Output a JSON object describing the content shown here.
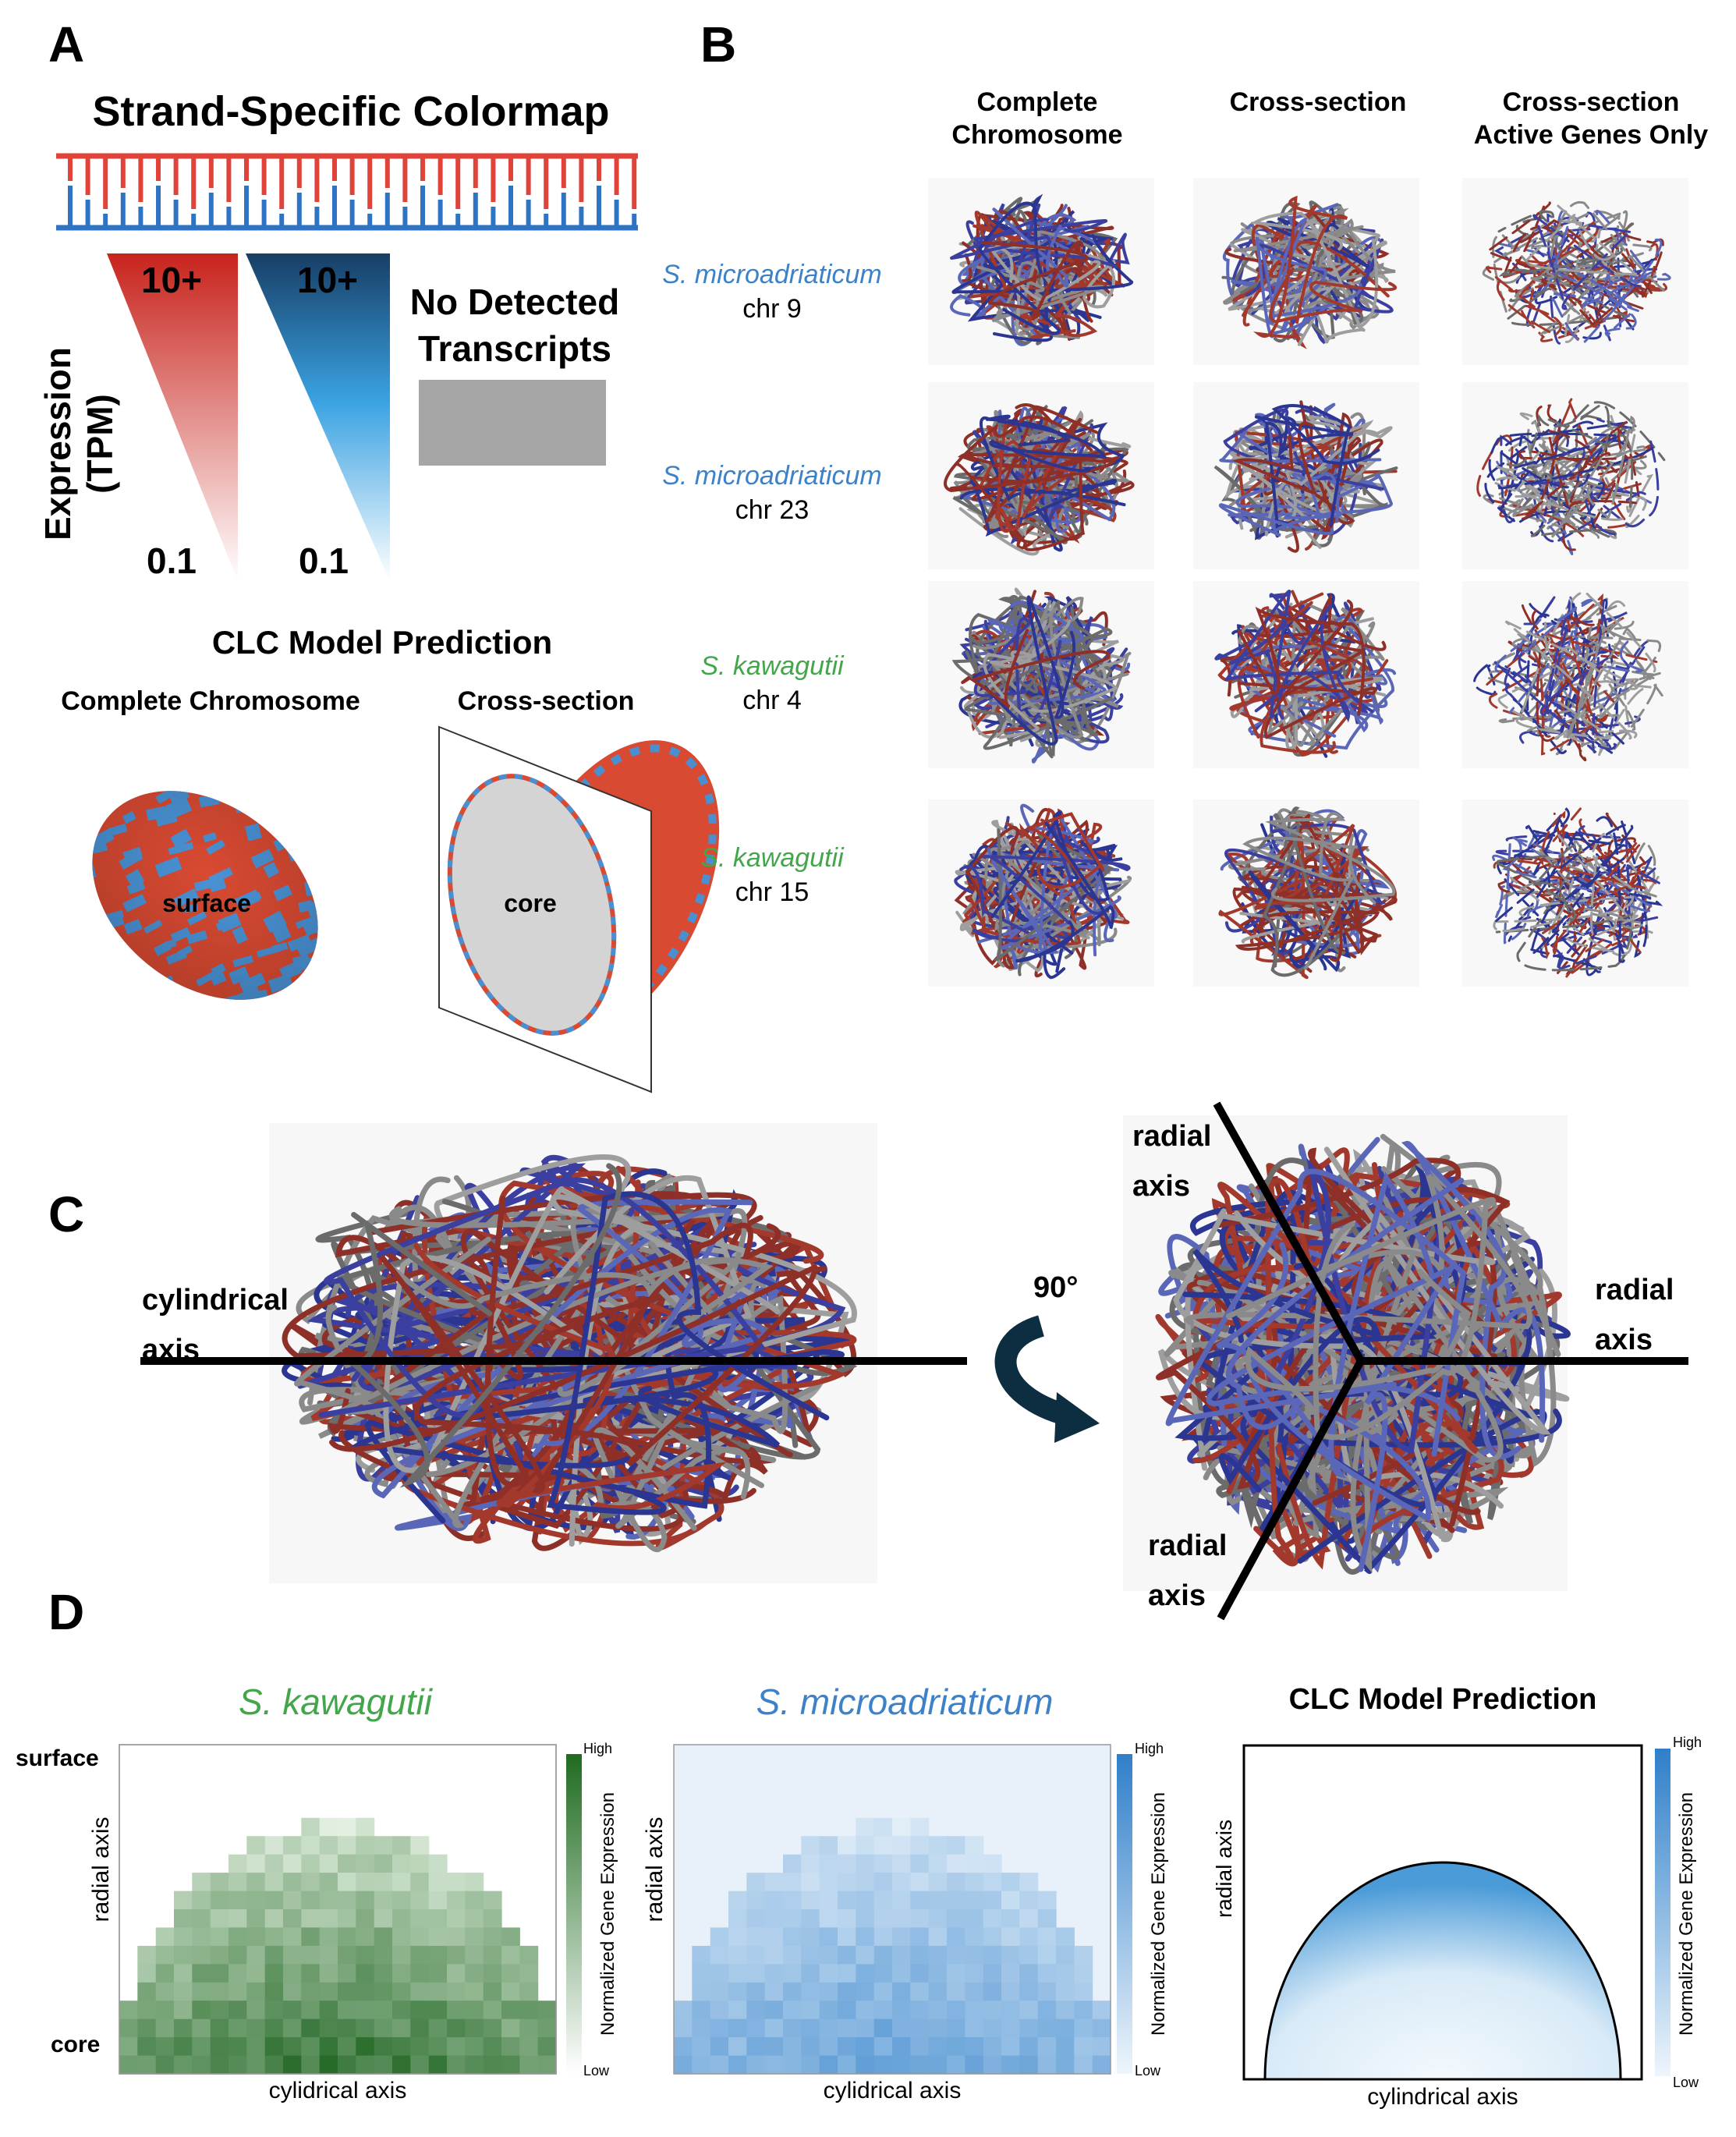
{
  "panel_a": {
    "letter": "A",
    "colormap_title": "Strand-Specific Colormap",
    "y_label": "Expression (TPM)",
    "red_max": "10+",
    "red_min": "0.1",
    "blue_max": "10+",
    "blue_min": "0.1",
    "no_detect_line1": "No Detected",
    "no_detect_line2": "Transcripts",
    "clc_title": "CLC Model Prediction",
    "complete_label": "Complete Chromosome",
    "cross_label": "Cross-section",
    "surface_label": "surface",
    "core_label": "core",
    "colors": {
      "red": "#d93a2b",
      "blue": "#3b8fd4",
      "gray": "#a6a6a6"
    }
  },
  "panel_b": {
    "letter": "B",
    "col_headers": [
      {
        "l1": "Complete",
        "l2": "Chromosome"
      },
      {
        "l1": "Cross-section",
        "l2": ""
      },
      {
        "l1": "Cross-section",
        "l2": "Active Genes Only"
      }
    ],
    "rows": [
      {
        "species": "S. microadriaticum",
        "chr": "chr 9",
        "color": "#3d82c9"
      },
      {
        "species": "S. microadriaticum",
        "chr": "chr 23",
        "color": "#3d82c9"
      },
      {
        "species": "S. kawagutii",
        "chr": "chr 4",
        "color": "#43a64a"
      },
      {
        "species": "S. kawagutii",
        "chr": "chr 15",
        "color": "#43a64a"
      }
    ]
  },
  "panel_c": {
    "letter": "C",
    "cyl_axis_l1": "cylindrical",
    "cyl_axis_l2": "axis",
    "rotation": "90°",
    "radial_top_l1": "radial",
    "radial_top_l2": "axis",
    "radial_right_l1": "radial",
    "radial_right_l2": "axis",
    "radial_bottom_l1": "radial",
    "radial_bottom_l2": "axis"
  },
  "panel_d": {
    "letter": "D",
    "kaw_title": "S. kawagutii",
    "mic_title": "S. microadriaticum",
    "clc_title": "CLC Model Prediction",
    "surface_label": "surface",
    "core_label": "core",
    "y_label": "radial axis",
    "x_label_data": "cylidrical axis",
    "x_label_model": "cylindrical axis",
    "cbar_label": "Normalized Gene Expression",
    "cbar_high": "High",
    "cbar_low": "Low",
    "colors": {
      "green": "#1f6b20",
      "blue": "#2f7fc9"
    }
  }
}
